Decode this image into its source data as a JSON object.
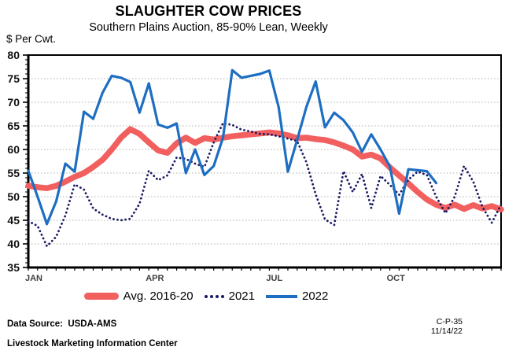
{
  "title": "SLAUGHTER COW PRICES",
  "subtitle": "Southern Plains Auction, 85-90% Lean, Weekly",
  "y_axis_unit": "$ Per Cwt.",
  "colors": {
    "avg_line": "#f25f5f",
    "line_2021": "#191a62",
    "line_2022": "#1d6ec2",
    "grid": "#b0b0b0"
  },
  "legend": {
    "items": [
      {
        "label": "Avg. 2016-20"
      },
      {
        "label": "2021"
      },
      {
        "label": "2022"
      }
    ]
  },
  "footer": {
    "data_source": "Data Source:  USDA-AMS",
    "organization": "Livestock Marketing Information Center",
    "doc_code": "C-P-35",
    "doc_date": "11/14/22"
  },
  "chart_data": {
    "type": "line",
    "title": "SLAUGHTER COW PRICES",
    "subtitle": "Southern Plains Auction, 85-90% Lean, Weekly",
    "ylabel": "$ Per Cwt.",
    "ylim": [
      35,
      80
    ],
    "y_ticks": [
      35,
      40,
      45,
      50,
      55,
      60,
      65,
      70,
      75,
      80
    ],
    "weeks": 52,
    "x_tick_labels": [
      "JAN",
      "APR",
      "JUL",
      "OCT"
    ],
    "x_tick_positions": [
      0,
      13,
      26,
      39
    ],
    "grid": "horizontal-dotted",
    "grid_color": "#b0b0b0",
    "legend_position": "bottom",
    "series": [
      {
        "name": "Avg. 2016-20",
        "style": "solid-thick",
        "color": "#f25f5f",
        "values": [
          52.3,
          52.0,
          51.8,
          52.3,
          53.2,
          54.2,
          55.0,
          56.3,
          57.8,
          60.0,
          62.5,
          64.3,
          63.3,
          61.5,
          59.8,
          59.3,
          61.3,
          62.5,
          61.4,
          62.4,
          62.1,
          62.5,
          62.8,
          63.0,
          63.2,
          63.4,
          63.6,
          63.4,
          63.0,
          62.4,
          62.5,
          62.2,
          62.0,
          61.5,
          60.8,
          60.0,
          58.5,
          58.9,
          58.1,
          56.2,
          54.5,
          52.8,
          51.0,
          49.4,
          48.3,
          47.6,
          48.3,
          47.4,
          48.2,
          47.5,
          48.0,
          47.3
        ]
      },
      {
        "name": "2021",
        "style": "dotted",
        "color": "#191a62",
        "values": [
          44.8,
          43.8,
          39.5,
          41.5,
          46.0,
          52.6,
          51.5,
          47.5,
          46.2,
          45.3,
          45.0,
          45.3,
          48.5,
          55.5,
          53.5,
          54.5,
          58.3,
          58.0,
          57.0,
          56.3,
          61.5,
          65.6,
          65.2,
          64.2,
          63.8,
          63.3,
          63.2,
          62.8,
          62.3,
          61.8,
          57.3,
          50.5,
          45.2,
          44.0,
          55.4,
          51.0,
          54.8,
          47.6,
          54.4,
          52.5,
          50.4,
          53.6,
          55.3,
          54.6,
          50.0,
          46.5,
          50.0,
          56.5,
          53.2,
          47.8,
          44.5,
          48.3
        ]
      },
      {
        "name": "2022",
        "style": "solid",
        "color": "#1d6ec2",
        "values": [
          55.5,
          50.0,
          44.2,
          49.0,
          57.0,
          55.3,
          68.0,
          66.5,
          72.0,
          75.6,
          75.2,
          74.3,
          67.8,
          74.0,
          65.3,
          64.6,
          65.5,
          55.0,
          60.0,
          54.6,
          56.5,
          62.5,
          76.8,
          75.2,
          75.6,
          76.0,
          76.7,
          69.0,
          55.3,
          62.0,
          69.0,
          74.4,
          64.7,
          67.8,
          66.2,
          63.6,
          59.5,
          63.2,
          60.0,
          56.4,
          46.4,
          55.8,
          55.6,
          55.4,
          52.9
        ]
      }
    ]
  }
}
